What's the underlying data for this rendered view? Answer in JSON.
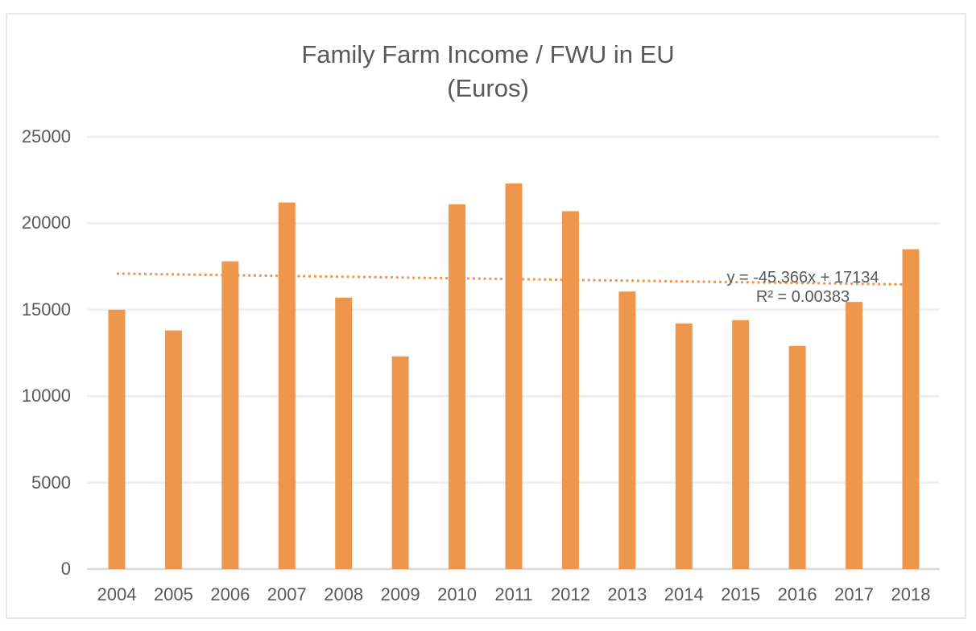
{
  "chart": {
    "title_line1": "Family Farm Income / FWU in EU",
    "title_line2": "(Euros)"
  },
  "chart_data": {
    "type": "bar",
    "title": "Family Farm Income / FWU in EU (Euros)",
    "categories": [
      "2004",
      "2005",
      "2006",
      "2007",
      "2008",
      "2009",
      "2010",
      "2011",
      "2012",
      "2013",
      "2014",
      "2015",
      "2016",
      "2017",
      "2018"
    ],
    "values": [
      15000,
      13800,
      17800,
      21200,
      15700,
      12300,
      21100,
      22300,
      20700,
      16050,
      14200,
      14400,
      12900,
      15450,
      18500
    ],
    "xlabel": "",
    "ylabel": "",
    "ylim": [
      0,
      25000
    ],
    "yticks": [
      0,
      5000,
      10000,
      15000,
      20000,
      25000
    ],
    "grid": true,
    "legend": false,
    "bar_color": "#EF964D",
    "trendline": {
      "type": "linear",
      "equation": "y = -45.366x + 17134",
      "r_squared": "R² = 0.00383",
      "slope": -45.366,
      "intercept": 17134,
      "style": "dotted",
      "color": "#EF964D"
    }
  },
  "colors": {
    "background": "#FFFFFF",
    "border": "#E7E7E7",
    "gridline": "#EFEFEF",
    "axis_line": "#D9D9D9",
    "text": "#595959",
    "bar": "#EF964D",
    "trendline": "#EF964D"
  }
}
